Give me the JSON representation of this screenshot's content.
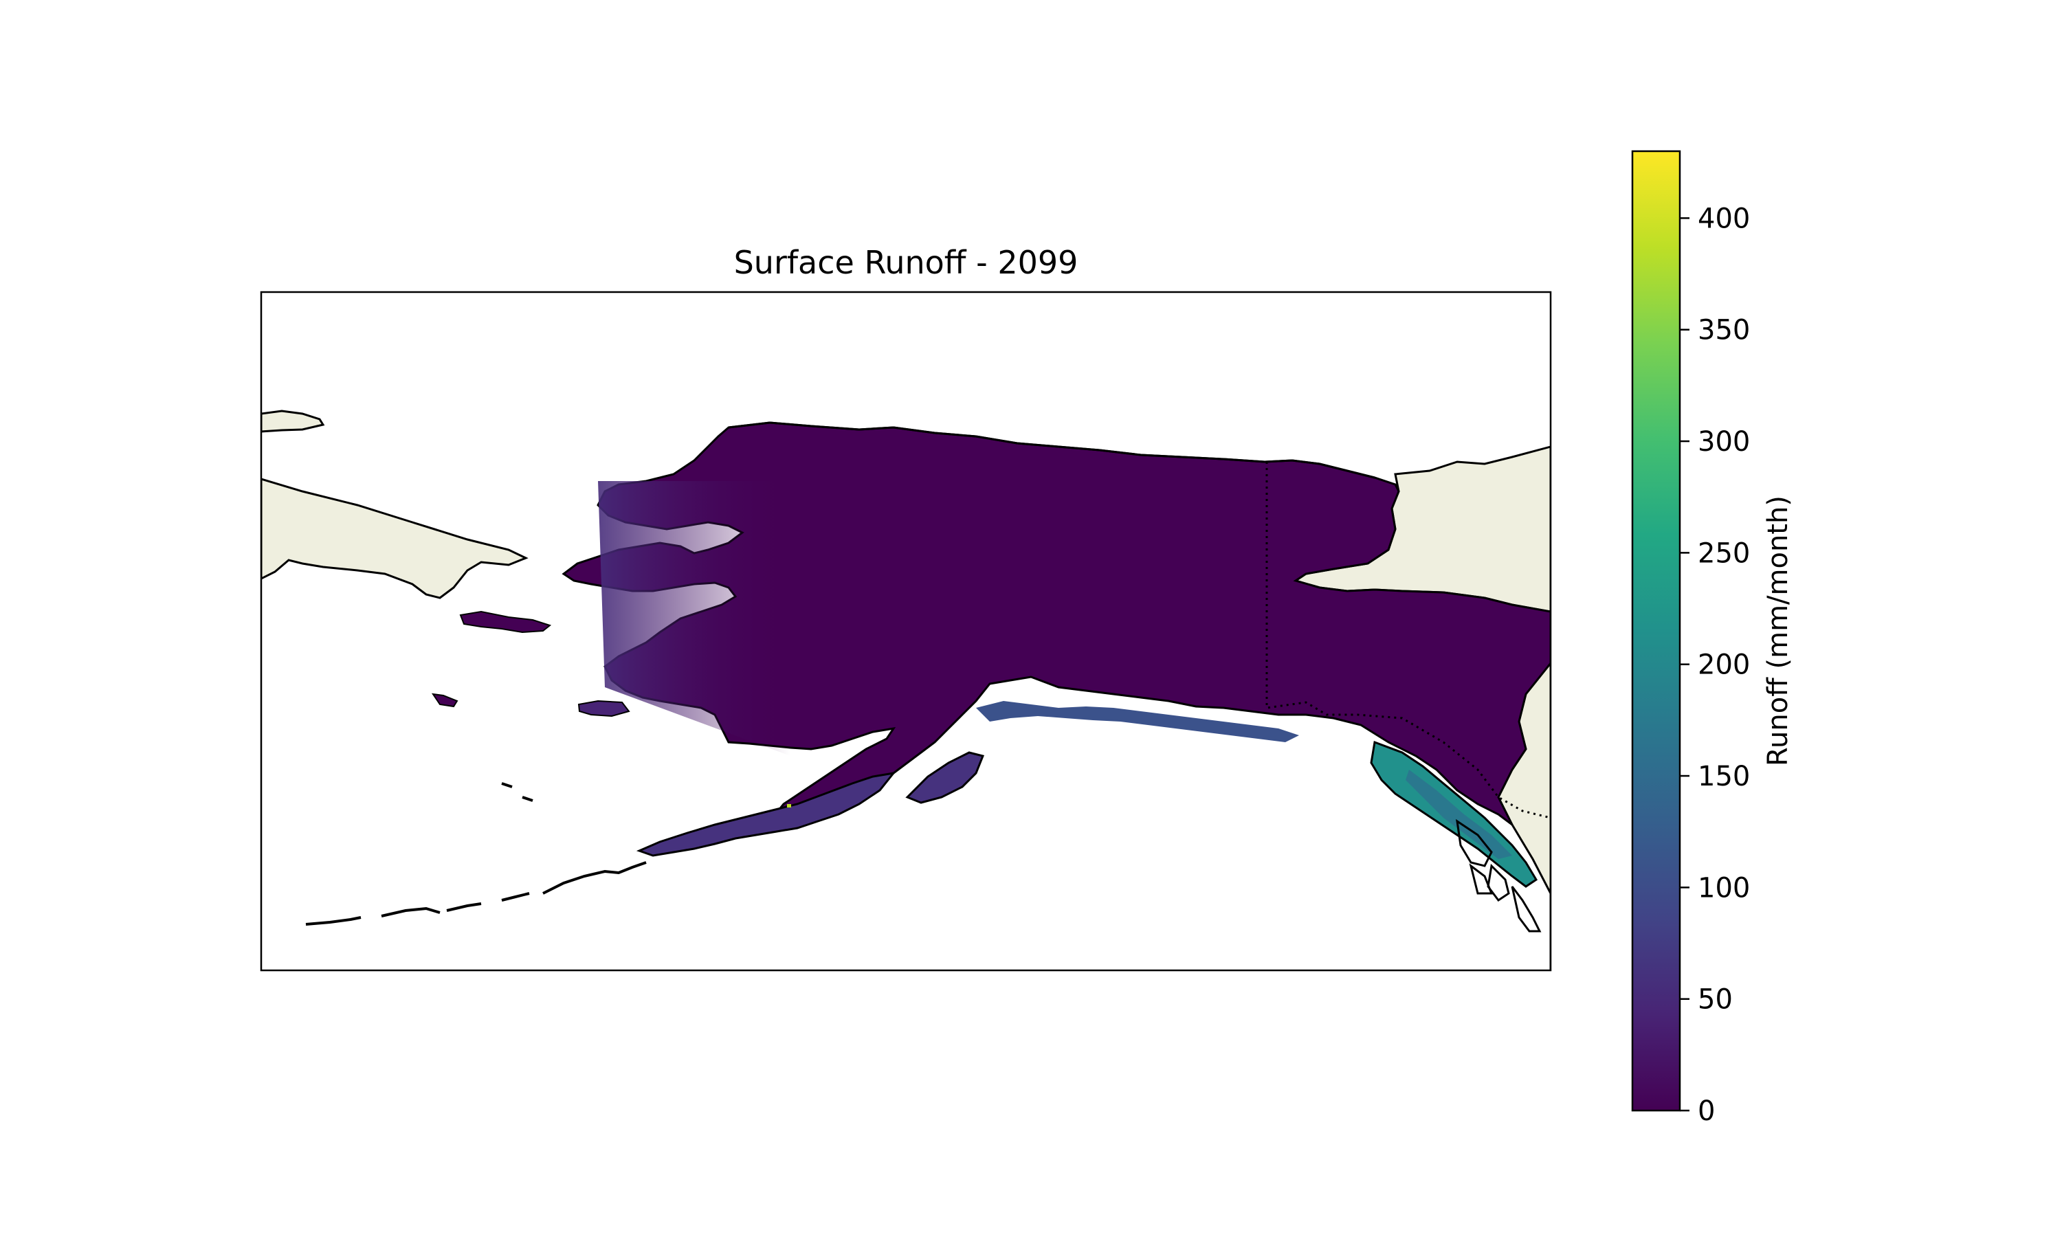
{
  "map": {
    "title": "Surface Runoff - 2099",
    "region": "Alaska",
    "colors": {
      "land": "#efefdf",
      "data_low": "#440154",
      "data_mid_high": "#3d4a89",
      "data_high": "#21918c",
      "coastline": "#000000",
      "border": "#000000",
      "frame": "#000000"
    },
    "features": [
      "coastline",
      "national-border (dotted)",
      "land",
      "runoff field"
    ]
  },
  "colorbar": {
    "label": "Runoff (mm/month)",
    "colormap": "viridis",
    "range": [
      0,
      430
    ],
    "ticks": [
      "0",
      "50",
      "100",
      "150",
      "200",
      "250",
      "300",
      "350",
      "400"
    ],
    "tick_values": [
      0,
      50,
      100,
      150,
      200,
      250,
      300,
      350,
      400
    ]
  },
  "chart_data": {
    "type": "heatmap",
    "title": "Surface Runoff - 2099",
    "colorbar_label": "Runoff (mm/month)",
    "value_range": [
      0,
      430
    ],
    "description_values": {
      "interior_typical": 5,
      "western_coast_typical": 40,
      "southeast_panhandle_max": 200,
      "alaska_peninsula_peak": 400
    }
  }
}
